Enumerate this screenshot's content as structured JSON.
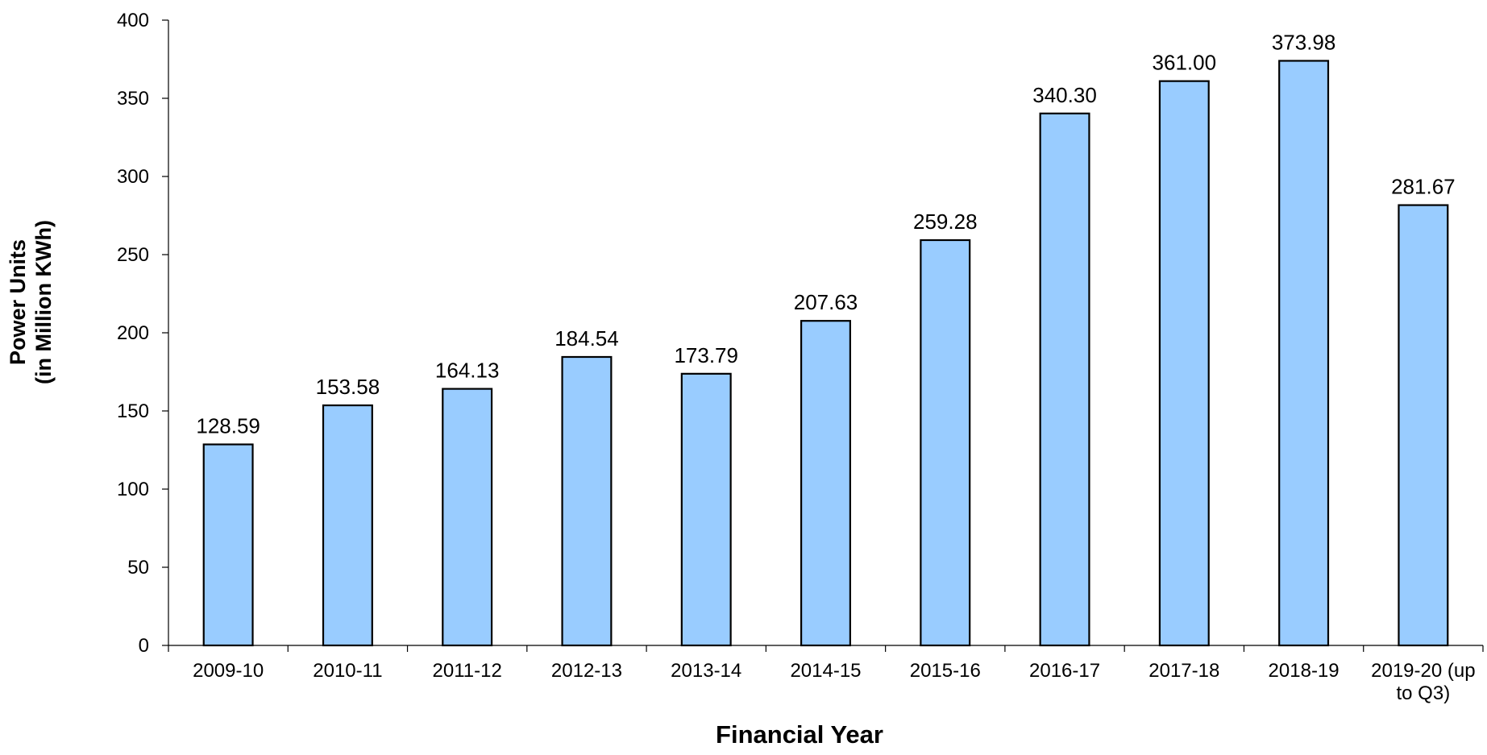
{
  "chart_data": {
    "type": "bar",
    "xlabel": "Financial Year",
    "ylabel": [
      "Power Units",
      "(in Million KWh)"
    ],
    "categories": [
      "2009-10",
      "2010-11",
      "2011-12",
      "2012-13",
      "2013-14",
      "2014-15",
      "2015-16",
      "2016-17",
      "2017-18",
      "2018-19",
      "2019-20 (up to Q3)"
    ],
    "values": [
      128.59,
      153.58,
      164.13,
      184.54,
      173.79,
      207.63,
      259.28,
      340.3,
      361,
      373.98,
      281.67
    ],
    "value_labels": [
      "128.59",
      "153.58",
      "164.13",
      "184.54",
      "173.79",
      "207.63",
      "259.28",
      "340.30",
      "361.00",
      "373.98",
      "281.67"
    ],
    "color": "#99ccff",
    "ylim": [
      0,
      400
    ],
    "yticks": [
      0,
      50,
      100,
      150,
      200,
      250,
      300,
      350,
      400
    ],
    "grid": false
  }
}
